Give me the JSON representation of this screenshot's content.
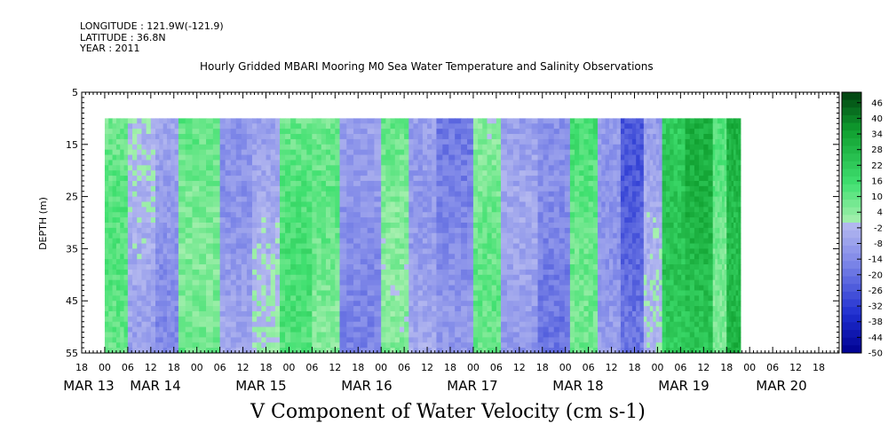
{
  "header": {
    "longitude": "LONGITUDE : 121.9W(-121.9)",
    "latitude": "LATITUDE : 36.8N",
    "year": "YEAR : 2011"
  },
  "chart_data": {
    "type": "heatmap",
    "title": "Hourly Gridded MBARI Mooring M0 Sea Water Temperature and Salinity Observations",
    "variable_label": "V Component of Water Velocity (cm s-1)",
    "ylabel": "DEPTH (m)",
    "ylim": [
      55,
      5
    ],
    "y_ticks": [
      5,
      15,
      25,
      35,
      45,
      55
    ],
    "x_hour_ticks": [
      "18",
      "00",
      "06",
      "12",
      "18",
      "00",
      "06",
      "12",
      "18",
      "00",
      "06",
      "12",
      "18",
      "00",
      "06",
      "12",
      "18",
      "00",
      "06",
      "12",
      "18",
      "00",
      "06",
      "12",
      "18",
      "00",
      "06",
      "12",
      "18",
      "00",
      "06",
      "12",
      "18"
    ],
    "x_date_labels": [
      "MAR 13",
      "MAR 14",
      "MAR 15",
      "MAR 16",
      "MAR 17",
      "MAR 18",
      "MAR 19",
      "MAR 20"
    ],
    "data_depth_range": [
      10,
      55
    ],
    "colorbar_range": [
      -50,
      50
    ],
    "colorbar_ticks": [
      46,
      40,
      34,
      28,
      22,
      16,
      10,
      4,
      -2,
      -8,
      -14,
      -20,
      -26,
      -32,
      -38,
      -44,
      -50
    ],
    "colormap": {
      "negative_light": "#b8bcf0",
      "negative_mid": "#7f88e8",
      "negative_dark": "#1f2fd0",
      "negative_min": "#000090",
      "positive_light": "#a8f0b0",
      "positive_mid": "#40e070",
      "positive_dark": "#10a030",
      "positive_max": "#004010"
    },
    "bands": [
      {
        "day_start": 1.0,
        "day_end": 1.25,
        "v": 8
      },
      {
        "day_start": 1.25,
        "day_end": 1.55,
        "v": -6
      },
      {
        "day_start": 1.55,
        "day_end": 1.8,
        "v": -10
      },
      {
        "day_start": 1.8,
        "day_end": 2.25,
        "v": 10
      },
      {
        "day_start": 2.25,
        "day_end": 2.6,
        "v": -8
      },
      {
        "day_start": 2.6,
        "day_end": 2.9,
        "v": -4
      },
      {
        "day_start": 2.9,
        "day_end": 3.25,
        "v": 10
      },
      {
        "day_start": 3.25,
        "day_end": 3.55,
        "v": 6
      },
      {
        "day_start": 3.55,
        "day_end": 4.0,
        "v": -12
      },
      {
        "day_start": 4.0,
        "day_end": 4.3,
        "v": 8
      },
      {
        "day_start": 4.3,
        "day_end": 4.6,
        "v": -6
      },
      {
        "day_start": 4.6,
        "day_end": 5.0,
        "v": -14
      },
      {
        "day_start": 5.0,
        "day_end": 5.3,
        "v": 6
      },
      {
        "day_start": 5.3,
        "day_end": 5.7,
        "v": -10
      },
      {
        "day_start": 5.7,
        "day_end": 6.05,
        "v": -16
      },
      {
        "day_start": 6.05,
        "day_end": 6.35,
        "v": 12
      },
      {
        "day_start": 6.35,
        "day_end": 6.6,
        "v": -8
      },
      {
        "day_start": 6.6,
        "day_end": 6.85,
        "v": -22
      },
      {
        "day_start": 6.85,
        "day_end": 7.05,
        "v": -6
      },
      {
        "day_start": 7.05,
        "day_end": 7.3,
        "v": 20
      },
      {
        "day_start": 7.3,
        "day_end": 7.6,
        "v": 26
      },
      {
        "day_start": 7.6,
        "day_end": 7.75,
        "v": 10
      },
      {
        "day_start": 7.75,
        "day_end": 7.9,
        "v": 30
      }
    ]
  }
}
